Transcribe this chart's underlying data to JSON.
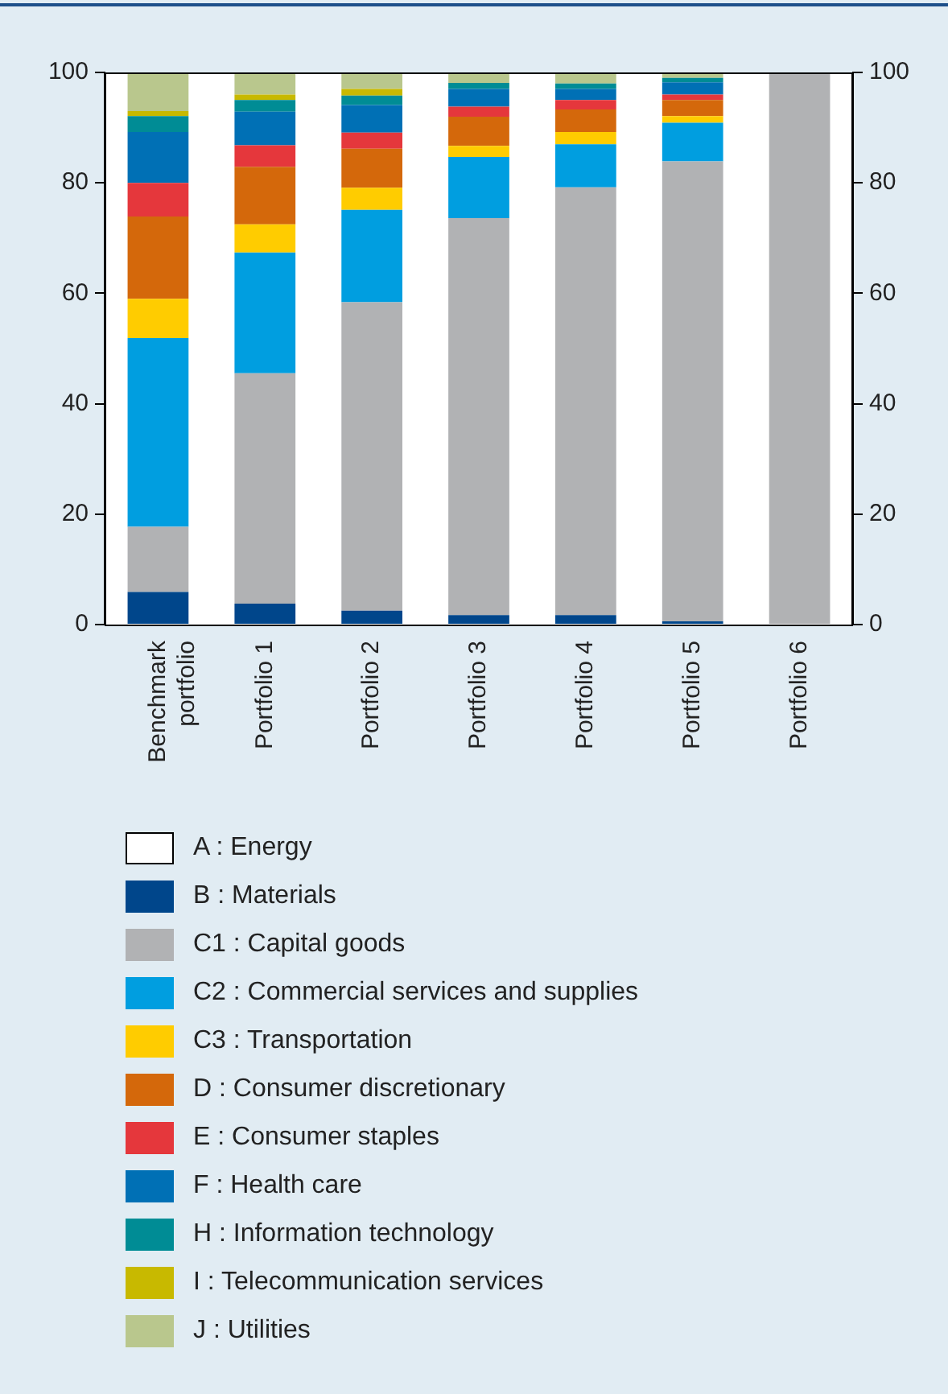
{
  "chart_data": {
    "type": "bar",
    "stacked": true,
    "grid": false,
    "legend": "bottom",
    "categories": [
      "Benchmark portfolio",
      "Portfolio 1",
      "Portfolio 2",
      "Portfolio 3",
      "Portfolio 4",
      "Portfolio 5",
      "Portfolio 6"
    ],
    "ylim": [
      0,
      100
    ],
    "yticks": [
      0,
      20,
      40,
      60,
      80,
      100
    ],
    "y2lim": [
      0,
      100
    ],
    "y2ticks": [
      0,
      20,
      40,
      60,
      80,
      100
    ],
    "series": [
      {
        "name": "A : Energy",
        "color": "#ffffff",
        "values": [
          0,
          0,
          0,
          0,
          0,
          0,
          0
        ]
      },
      {
        "name": "B : Materials",
        "color": "#00468b",
        "values": [
          5.9,
          3.8,
          2.5,
          1.7,
          1.7,
          0.6,
          0
        ]
      },
      {
        "name": "C1 : Capital goods",
        "color": "#b1b2b4",
        "values": [
          11.8,
          41.7,
          55.9,
          71.9,
          77.5,
          83.3,
          100
        ]
      },
      {
        "name": "C2 : Commercial services and supplies",
        "color": "#009ee0",
        "values": [
          34.2,
          21.9,
          16.7,
          11.1,
          7.8,
          7.0,
          0
        ]
      },
      {
        "name": "C3 : Transportation",
        "color": "#ffcc00",
        "values": [
          7.1,
          5.1,
          4.0,
          2.0,
          2.2,
          1.2,
          0
        ]
      },
      {
        "name": "D : Consumer discretionary",
        "color": "#d4680b",
        "values": [
          14.9,
          10.4,
          7.1,
          5.3,
          4.1,
          2.9,
          0
        ]
      },
      {
        "name": "E : Consumer staples",
        "color": "#e5373c",
        "values": [
          6.1,
          3.9,
          2.9,
          1.8,
          1.7,
          1.0,
          0
        ]
      },
      {
        "name": "F : Health care",
        "color": "#0070b5",
        "values": [
          9.2,
          6.1,
          5.0,
          3.2,
          2.0,
          2.2,
          0
        ]
      },
      {
        "name": "H : Information technology",
        "color": "#008c95",
        "values": [
          2.9,
          2.1,
          1.7,
          1.1,
          1.0,
          0.8,
          0
        ]
      },
      {
        "name": "I : Telecommunication services",
        "color": "#c8b900",
        "values": [
          0.9,
          1.0,
          1.2,
          0,
          0,
          0,
          0
        ]
      },
      {
        "name": "J : Utilities",
        "color": "#b9c78d",
        "values": [
          7.0,
          4.0,
          3.0,
          1.9,
          2.0,
          1.0,
          0
        ]
      }
    ]
  }
}
